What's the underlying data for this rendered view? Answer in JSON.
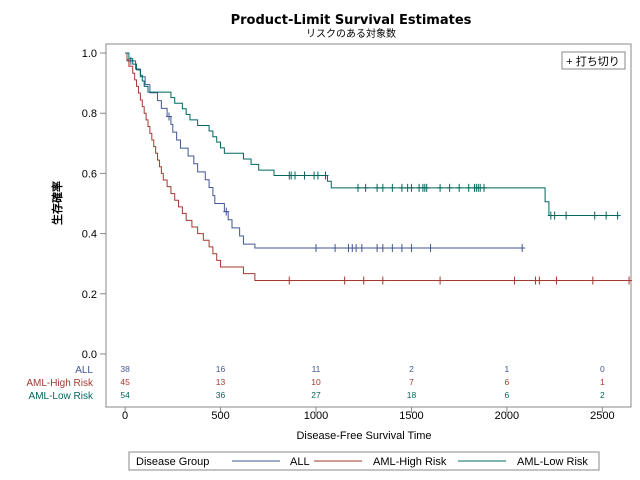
{
  "chart_data": {
    "type": "line",
    "title": "Product-Limit Survival Estimates",
    "subtitle": "リスクのある対象数",
    "xlabel": "Disease-Free Survival Time",
    "ylabel": "生存確率",
    "xlim": [
      -100,
      2650
    ],
    "ylim": [
      -0.02,
      1.03
    ],
    "x_ticks": [
      0,
      500,
      1000,
      1500,
      2000,
      2500
    ],
    "y_ticks": [
      0.0,
      0.2,
      0.4,
      0.6,
      0.8,
      1.0
    ],
    "x_tick_labels": [
      "0",
      "500",
      "1000",
      "1500",
      "2000",
      "2500"
    ],
    "y_tick_labels": [
      "0.0",
      "0.2",
      "0.4",
      "0.6",
      "0.8",
      "1.0"
    ],
    "censor_legend": "+ 打ち切り",
    "legend_title": "Disease Group",
    "legend_position": "bottom",
    "grid": false,
    "series": [
      {
        "name": "ALL",
        "color": "#445694",
        "steps": [
          [
            0,
            1.0
          ],
          [
            10,
            0.974
          ],
          [
            55,
            0.947
          ],
          [
            80,
            0.921
          ],
          [
            105,
            0.895
          ],
          [
            130,
            0.868
          ],
          [
            170,
            0.842
          ],
          [
            190,
            0.816
          ],
          [
            220,
            0.789
          ],
          [
            240,
            0.763
          ],
          [
            250,
            0.737
          ],
          [
            270,
            0.711
          ],
          [
            290,
            0.684
          ],
          [
            330,
            0.658
          ],
          [
            360,
            0.632
          ],
          [
            380,
            0.605
          ],
          [
            420,
            0.579
          ],
          [
            440,
            0.553
          ],
          [
            460,
            0.526
          ],
          [
            470,
            0.5
          ],
          [
            520,
            0.473
          ],
          [
            540,
            0.446
          ],
          [
            560,
            0.419
          ],
          [
            600,
            0.392
          ],
          [
            620,
            0.365
          ],
          [
            680,
            0.352
          ]
        ],
        "end_x": 2090,
        "censor_x": [
          30,
          230,
          530,
          1000,
          1100,
          1170,
          1190,
          1210,
          1240,
          1320,
          1350,
          1400,
          1450,
          1500,
          1600,
          2080
        ]
      },
      {
        "name": "AML-High Risk",
        "color": "#A23A2E",
        "steps": [
          [
            0,
            1.0
          ],
          [
            10,
            0.978
          ],
          [
            20,
            0.956
          ],
          [
            40,
            0.933
          ],
          [
            50,
            0.911
          ],
          [
            60,
            0.889
          ],
          [
            70,
            0.867
          ],
          [
            80,
            0.844
          ],
          [
            90,
            0.822
          ],
          [
            100,
            0.8
          ],
          [
            110,
            0.778
          ],
          [
            120,
            0.756
          ],
          [
            130,
            0.733
          ],
          [
            140,
            0.711
          ],
          [
            150,
            0.689
          ],
          [
            160,
            0.667
          ],
          [
            170,
            0.644
          ],
          [
            180,
            0.622
          ],
          [
            190,
            0.6
          ],
          [
            200,
            0.578
          ],
          [
            220,
            0.556
          ],
          [
            240,
            0.533
          ],
          [
            260,
            0.511
          ],
          [
            280,
            0.489
          ],
          [
            300,
            0.467
          ],
          [
            320,
            0.444
          ],
          [
            350,
            0.422
          ],
          [
            380,
            0.4
          ],
          [
            410,
            0.378
          ],
          [
            440,
            0.356
          ],
          [
            460,
            0.333
          ],
          [
            480,
            0.311
          ],
          [
            500,
            0.289
          ],
          [
            620,
            0.267
          ],
          [
            680,
            0.244
          ]
        ],
        "end_x": 2640,
        "censor_x": [
          860,
          1150,
          1250,
          1350,
          1650,
          2040,
          2150,
          2170,
          2260,
          2450,
          2640
        ]
      },
      {
        "name": "AML-Low Risk",
        "color": "#01665E",
        "steps": [
          [
            0,
            1.0
          ],
          [
            20,
            0.981
          ],
          [
            40,
            0.963
          ],
          [
            60,
            0.944
          ],
          [
            80,
            0.926
          ],
          [
            90,
            0.907
          ],
          [
            100,
            0.889
          ],
          [
            120,
            0.87
          ],
          [
            240,
            0.852
          ],
          [
            260,
            0.833
          ],
          [
            300,
            0.815
          ],
          [
            320,
            0.796
          ],
          [
            340,
            0.778
          ],
          [
            380,
            0.759
          ],
          [
            440,
            0.741
          ],
          [
            460,
            0.722
          ],
          [
            480,
            0.704
          ],
          [
            500,
            0.685
          ],
          [
            520,
            0.667
          ],
          [
            620,
            0.648
          ],
          [
            660,
            0.63
          ],
          [
            700,
            0.611
          ],
          [
            780,
            0.593
          ],
          [
            1060,
            0.574
          ],
          [
            1080,
            0.552
          ],
          [
            2200,
            0.506
          ],
          [
            2220,
            0.46
          ]
        ],
        "end_x": 2580,
        "censor_x": [
          860,
          870,
          890,
          940,
          990,
          1010,
          1050,
          1220,
          1260,
          1320,
          1350,
          1400,
          1450,
          1480,
          1500,
          1540,
          1560,
          1570,
          1580,
          1650,
          1700,
          1750,
          1800,
          1830,
          1840,
          1850,
          1860,
          1880,
          2230,
          2250,
          2310,
          2460,
          2520,
          2580
        ]
      }
    ],
    "risk_table": {
      "x": [
        0,
        500,
        1000,
        1500,
        2000,
        2500
      ],
      "rows": [
        {
          "label": "ALL",
          "counts": [
            "38",
            "16",
            "11",
            "2",
            "1",
            "0"
          ],
          "color": "#445694"
        },
        {
          "label": "AML-High Risk",
          "counts": [
            "45",
            "13",
            "10",
            "7",
            "6",
            "1"
          ],
          "color": "#A23A2E"
        },
        {
          "label": "AML-Low Risk",
          "counts": [
            "54",
            "36",
            "27",
            "18",
            "6",
            "2"
          ],
          "color": "#01665E"
        }
      ]
    }
  }
}
